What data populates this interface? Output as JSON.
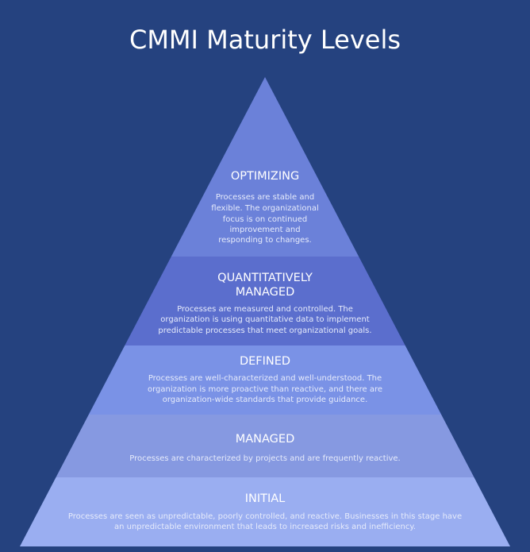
{
  "title": "CMMI Maturity Levels",
  "levels": [
    {
      "name_lines": [
        "OPTIMIZING"
      ],
      "description_lines": [
        "Processes are stable and",
        "flexible. The organizational",
        "focus is on continued",
        "improvement and",
        "responding to changes."
      ]
    },
    {
      "name_lines": [
        "QUANTITATIVELY",
        "MANAGED"
      ],
      "description_lines": [
        "Processes are measured and controlled. The",
        "organization is using quantitative data to implement",
        "predictable processes that meet organizational goals."
      ]
    },
    {
      "name_lines": [
        "DEFINED"
      ],
      "description_lines": [
        "Processes are well-characterized and well-understood. The",
        "organization is more proactive than reactive, and there are",
        "organization-wide standards that provide guidance."
      ]
    },
    {
      "name_lines": [
        "MANAGED"
      ],
      "description_lines": [
        "Processes are characterized by projects and are frequently reactive."
      ]
    },
    {
      "name_lines": [
        "INITIAL"
      ],
      "description_lines": [
        "Processes are seen as unpredictable, poorly controlled, and reactive. Businesses in this stage have",
        "an unpredictable environment that leads to increased risks and inefficiency."
      ]
    }
  ]
}
